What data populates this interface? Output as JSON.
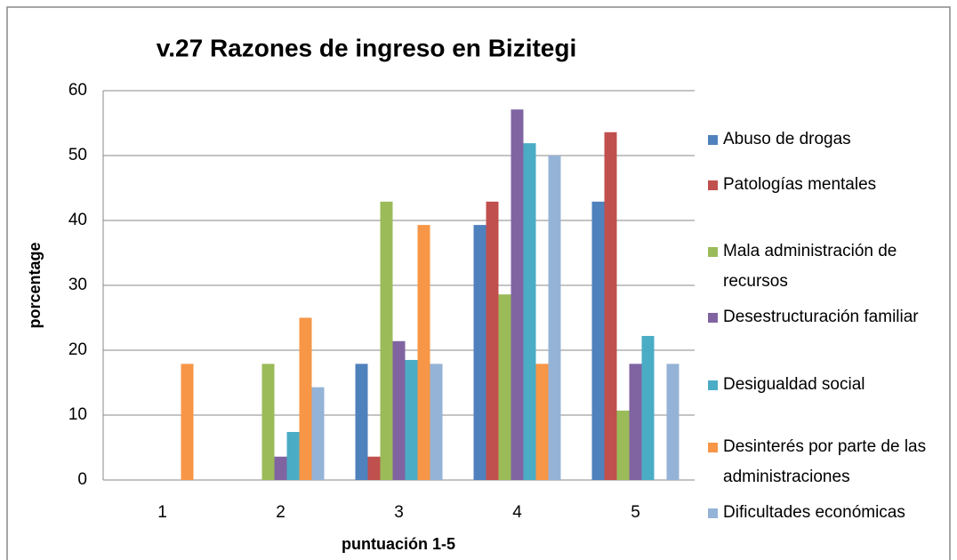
{
  "chart_data": {
    "type": "bar",
    "title": "v.27 Razones de ingreso en Bizitegi",
    "x_label": "puntuación 1-5",
    "y_label": "porcentage",
    "categories": [
      "1",
      "2",
      "3",
      "4",
      "5"
    ],
    "series": [
      {
        "name": "Abuso de drogas",
        "color": "#4f81bd",
        "values": [
          0,
          0,
          17.9,
          39.3,
          42.9
        ]
      },
      {
        "name": "Patologías mentales",
        "color": "#c0504d",
        "values": [
          0,
          0,
          3.6,
          42.9,
          53.6
        ]
      },
      {
        "name": "Mala administración de recursos",
        "color": "#9bbb59",
        "values": [
          0,
          17.9,
          42.9,
          28.6,
          10.7
        ]
      },
      {
        "name": "Desestructuración familiar",
        "color": "#8064a2",
        "values": [
          0,
          3.6,
          21.4,
          57.1,
          17.9
        ]
      },
      {
        "name": "Desigualdad social",
        "color": "#4bacc6",
        "values": [
          0,
          7.4,
          18.5,
          51.9,
          22.2
        ]
      },
      {
        "name": "Desinterés por parte de las administraciones",
        "color": "#f79646",
        "values": [
          17.9,
          25,
          39.3,
          17.9,
          0
        ]
      },
      {
        "name": "Dificultades económicas",
        "color": "#95b3d7",
        "values": [
          0,
          14.3,
          17.9,
          50,
          17.9
        ]
      }
    ],
    "ylim": [
      0,
      60
    ],
    "yticks": [
      0,
      10,
      20,
      30,
      40,
      50,
      60
    ],
    "grid": true,
    "legend": "right"
  }
}
